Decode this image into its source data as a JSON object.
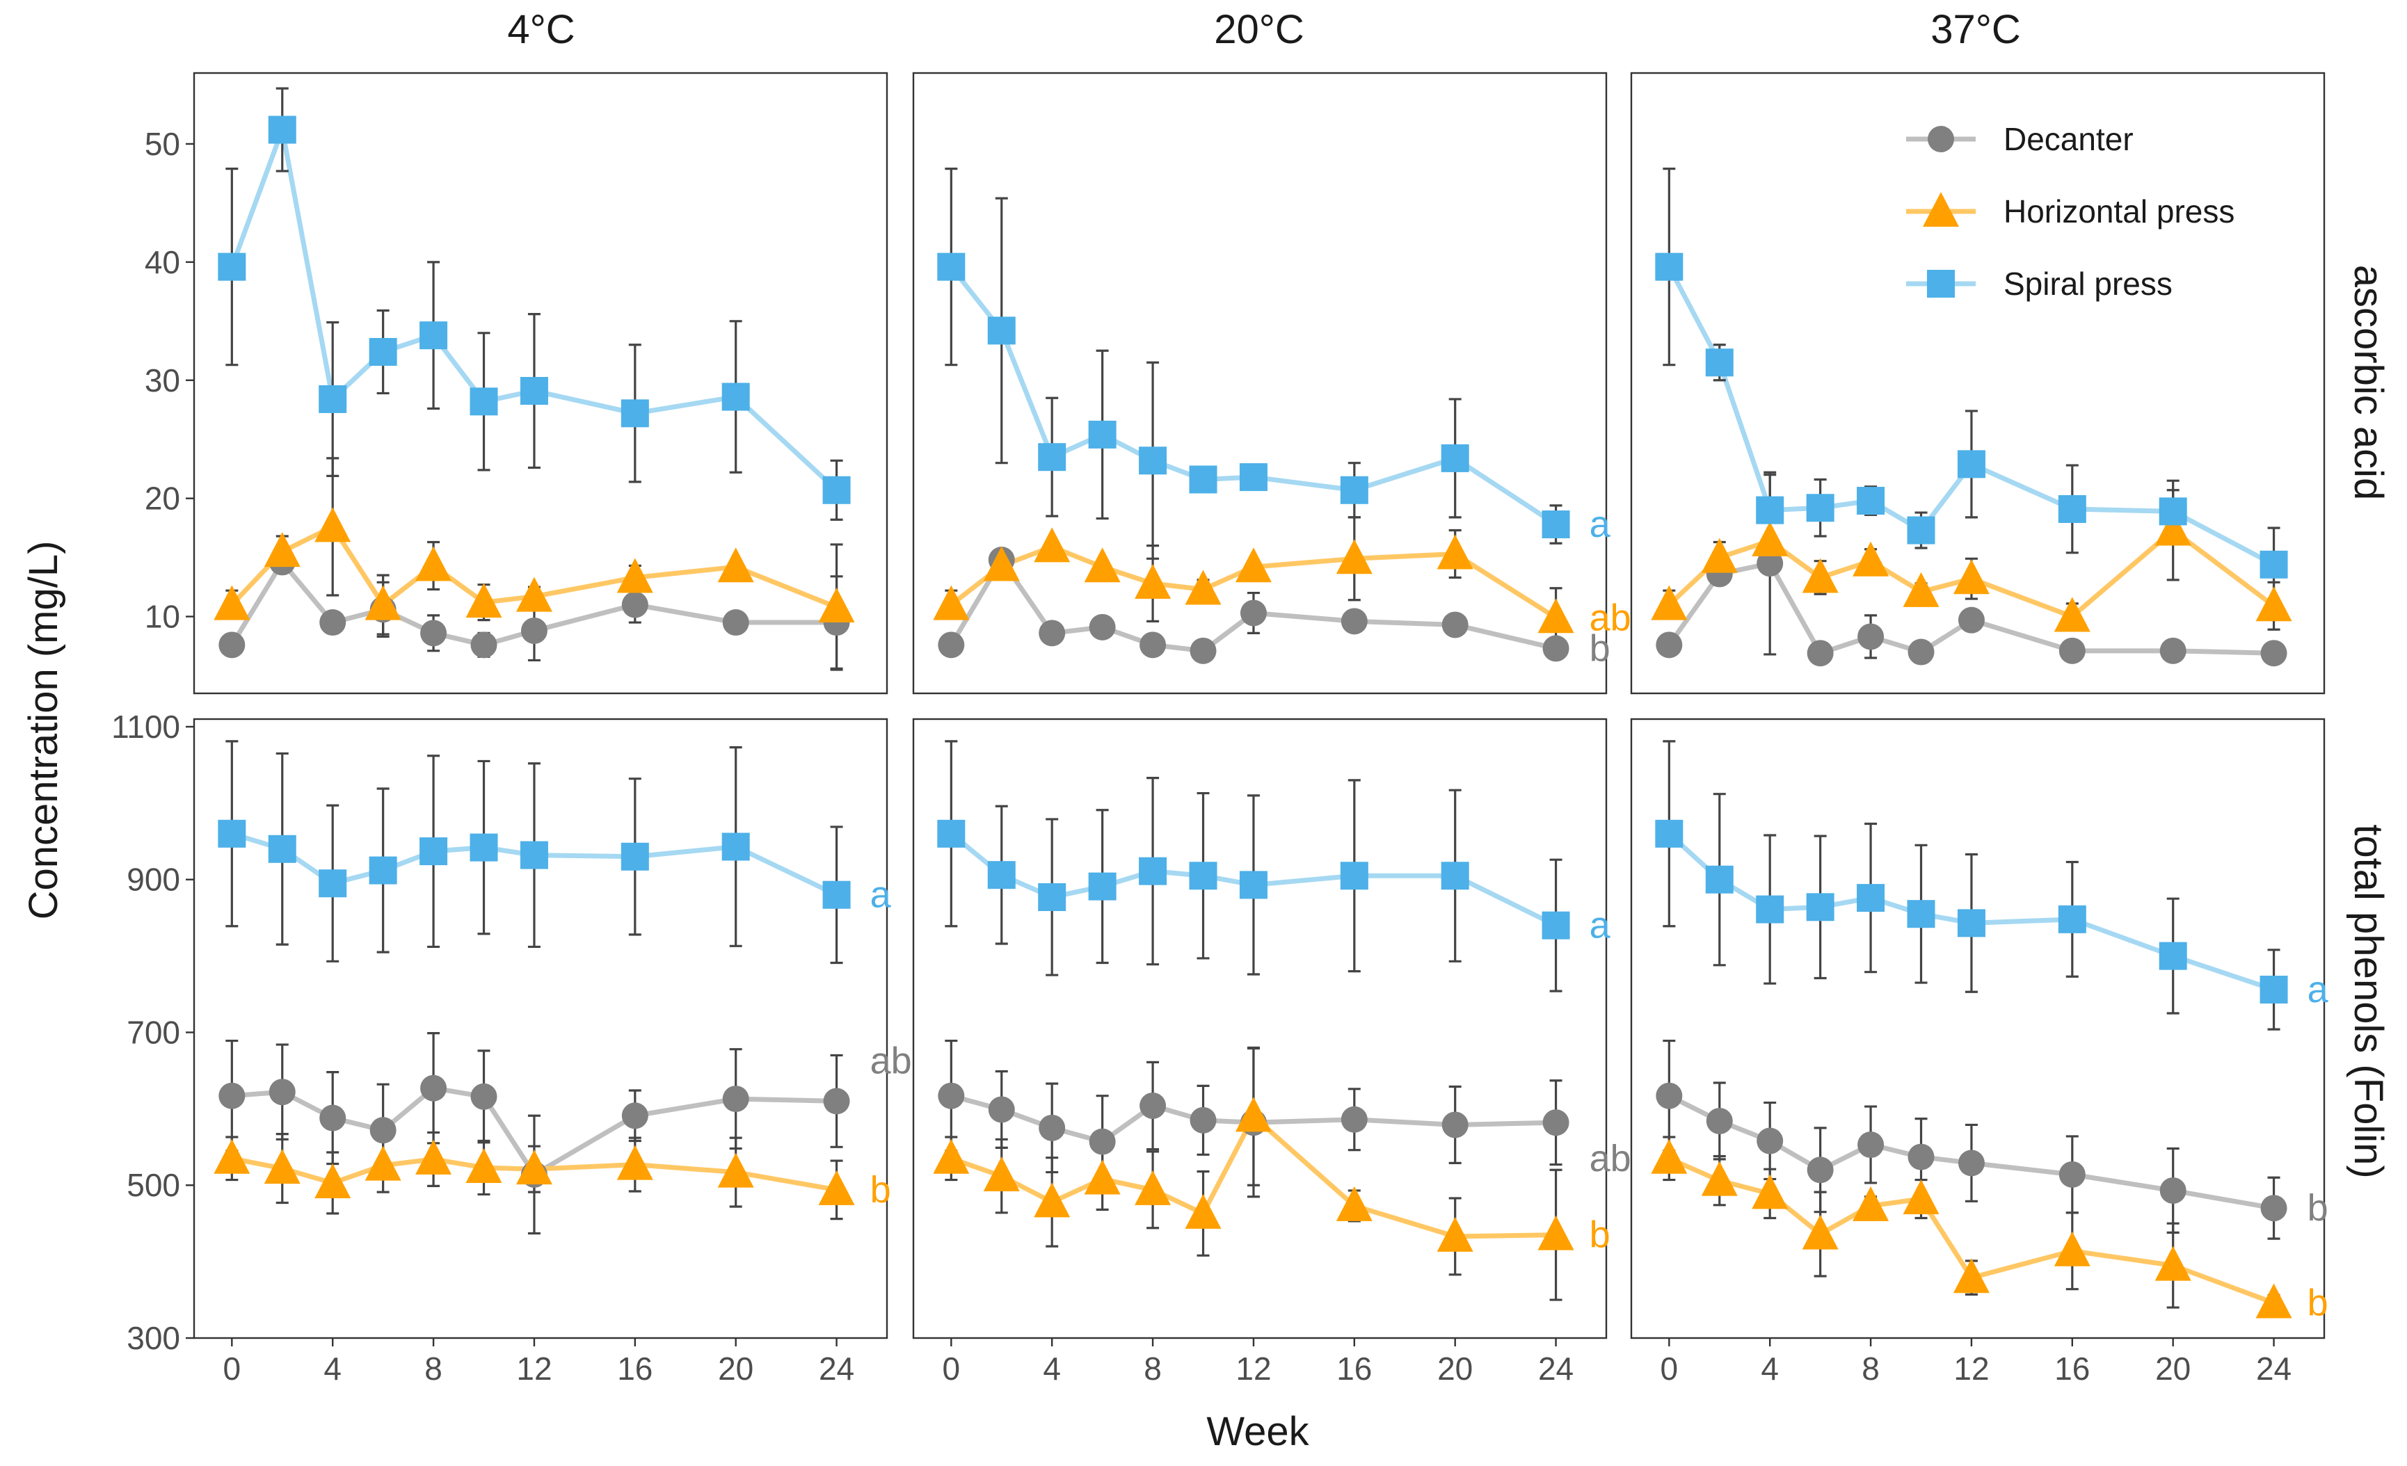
{
  "colors": {
    "Decanter": "#808080",
    "Horizontal press": "#FFA000",
    "Spiral press": "#4DB0E8"
  },
  "labels": {
    "ylabel": "Concentration (mg/L)",
    "xlabel": "Week",
    "row_strips": [
      "ascorbic acid",
      "total phenols (Folin)"
    ],
    "col_strips": [
      "4°C",
      "20°C",
      "37°C"
    ]
  },
  "legend": [
    {
      "name": "Decanter",
      "marker": "circle"
    },
    {
      "name": "Horizontal press",
      "marker": "triangle"
    },
    {
      "name": "Spiral press",
      "marker": "square"
    }
  ],
  "chart_data": {
    "type": "line",
    "facets": "rows = analyte, columns = storage temperature",
    "x": [
      0,
      2,
      4,
      6,
      8,
      10,
      12,
      16,
      20,
      24
    ],
    "xticks": [
      0,
      4,
      8,
      12,
      16,
      20,
      24
    ],
    "xlim": [
      -1.5,
      26
    ],
    "rows": [
      {
        "name": "ascorbic acid",
        "ylim": [
          3.5,
          56
        ],
        "yticks": [
          10,
          20,
          30,
          40,
          50
        ],
        "panels": [
          {
            "temperature": "4°C",
            "series": [
              {
                "name": "Decanter",
                "values": [
                  7.6,
                  14.6,
                  9.5,
                  10.6,
                  8.6,
                  7.6,
                  8.8,
                  11,
                  9.5,
                  9.5
                ],
                "errors": [
                  0.9,
                  0.4,
                  0.3,
                  2.3,
                  1.5,
                  1,
                  2.5,
                  1.5,
                  0.6,
                  3.9
                ],
                "letter": ""
              },
              {
                "name": "Horizontal press",
                "values": [
                  11,
                  15.5,
                  17.6,
                  11,
                  14.3,
                  11.2,
                  11.7,
                  13.3,
                  14.2,
                  10.8
                ],
                "errors": [
                  1.2,
                  1.3,
                  5.8,
                  2.5,
                  2,
                  1.5,
                  0.8,
                  1,
                  0.5,
                  5.3
                ],
                "letter": ""
              },
              {
                "name": "Spiral press",
                "values": [
                  39.6,
                  51.2,
                  28.4,
                  32.4,
                  33.8,
                  28.2,
                  29.1,
                  27.2,
                  28.6,
                  20.7
                ],
                "errors": [
                  8.3,
                  3.5,
                  6.5,
                  3.5,
                  6.2,
                  5.8,
                  6.5,
                  5.8,
                  6.4,
                  2.5
                ],
                "letter": ""
              }
            ]
          },
          {
            "temperature": "20°C",
            "series": [
              {
                "name": "Decanter",
                "values": [
                  7.6,
                  14.8,
                  8.6,
                  9.1,
                  7.6,
                  7.1,
                  10.3,
                  9.6,
                  9.3,
                  7.3
                ],
                "errors": [
                  0.8,
                  0.3,
                  0.8,
                  0.4,
                  0.7,
                  0.6,
                  1.7,
                  0.7,
                  0.7,
                  0.4
                ],
                "letter": "b"
              },
              {
                "name": "Horizontal press",
                "values": [
                  11,
                  14.3,
                  15.9,
                  14.2,
                  12.8,
                  12.3,
                  14.2,
                  14.9,
                  15.3,
                  9.9
                ],
                "errors": [
                  1.2,
                  0.4,
                  0.3,
                  0.4,
                  3.2,
                  0.8,
                  0.5,
                  3.5,
                  2,
                  2.5
                ],
                "letter": "ab"
              },
              {
                "name": "Spiral press",
                "values": [
                  39.6,
                  34.2,
                  23.5,
                  25.4,
                  23.2,
                  21.6,
                  21.8,
                  20.7,
                  23.4,
                  17.8
                ],
                "errors": [
                  8.3,
                  11.2,
                  5,
                  7.1,
                  8.3,
                  0.2,
                  0.8,
                  2.3,
                  5,
                  1.6
                ],
                "letter": "a"
              }
            ]
          },
          {
            "temperature": "37°C",
            "series": [
              {
                "name": "Decanter",
                "values": [
                  7.6,
                  13.6,
                  14.5,
                  6.9,
                  8.3,
                  7,
                  9.7,
                  7.1,
                  7.1,
                  6.9
                ],
                "errors": [
                  0.8,
                  0.9,
                  7.7,
                  0.5,
                  1.8,
                  0.7,
                  0.6,
                  0.5,
                  0.3,
                  0.4
                ],
                "letter": ""
              },
              {
                "name": "Horizontal press",
                "values": [
                  11,
                  15,
                  16.4,
                  13.3,
                  14.7,
                  12.1,
                  13.2,
                  10,
                  17.3,
                  10.9
                ],
                "errors": [
                  1.2,
                  1.3,
                  1.7,
                  1.4,
                  1,
                  0.7,
                  1.7,
                  1.1,
                  4.2,
                  2
                ],
                "letter": ""
              },
              {
                "name": "Spiral press",
                "values": [
                  39.6,
                  31.5,
                  19,
                  19.2,
                  19.8,
                  17.3,
                  22.9,
                  19.1,
                  18.9,
                  14.4
                ],
                "errors": [
                  8.3,
                  1.5,
                  3,
                  2.4,
                  1.2,
                  1.5,
                  4.5,
                  3.7,
                  1.8,
                  3.1
                ],
                "letter": ""
              }
            ]
          }
        ]
      },
      {
        "name": "total phenols (Folin)",
        "ylim": [
          300,
          1110
        ],
        "yticks": [
          300,
          500,
          700,
          900,
          1100
        ],
        "panels": [
          {
            "temperature": "4°C",
            "series": [
              {
                "name": "Decanter",
                "values": [
                  617,
                  622,
                  588,
                  572,
                  627,
                  616,
                  514,
                  591,
                  613,
                  610
                ],
                "errors": [
                  72,
                  62,
                  60,
                  60,
                  72,
                  60,
                  77,
                  33,
                  65,
                  60
                ],
                "letter": "ab"
              },
              {
                "name": "Horizontal press",
                "values": [
                  535,
                  522,
                  503,
                  526,
                  534,
                  523,
                  521,
                  527,
                  517,
                  494
                ],
                "errors": [
                  28,
                  45,
                  40,
                  35,
                  35,
                  35,
                  30,
                  35,
                  45,
                  38
                ],
                "letter": "b"
              },
              {
                "name": "Spiral press",
                "values": [
                  960,
                  940,
                  895,
                  912,
                  937,
                  942,
                  932,
                  930,
                  943,
                  880
                ],
                "errors": [
                  121,
                  125,
                  102,
                  107,
                  125,
                  113,
                  120,
                  102,
                  130,
                  89
                ],
                "letter": "a"
              }
            ]
          },
          {
            "temperature": "20°C",
            "series": [
              {
                "name": "Decanter",
                "values": [
                  617,
                  599,
                  575,
                  557,
                  604,
                  585,
                  582,
                  586,
                  579,
                  582
                ],
                "errors": [
                  72,
                  50,
                  58,
                  60,
                  57,
                  45,
                  97,
                  40,
                  50,
                  55
                ],
                "letter": "ab"
              },
              {
                "name": "Horizontal press",
                "values": [
                  535,
                  512,
                  478,
                  508,
                  494,
                  463,
                  590,
                  473,
                  433,
                  435
                ],
                "errors": [
                  28,
                  48,
                  58,
                  40,
                  50,
                  55,
                  90,
                  20,
                  50,
                  85
                ],
                "letter": "b"
              },
              {
                "name": "Spiral press",
                "values": [
                  960,
                  906,
                  877,
                  891,
                  911,
                  905,
                  893,
                  905,
                  905,
                  840
                ],
                "errors": [
                  121,
                  90,
                  102,
                  100,
                  122,
                  108,
                  117,
                  125,
                  112,
                  86
                ],
                "letter": "a"
              }
            ]
          },
          {
            "temperature": "37°C",
            "series": [
              {
                "name": "Decanter",
                "values": [
                  617,
                  584,
                  558,
                  520,
                  553,
                  537,
                  529,
                  514,
                  493,
                  470
                ],
                "errors": [
                  72,
                  50,
                  50,
                  55,
                  50,
                  50,
                  50,
                  50,
                  55,
                  40
                ],
                "letter": "b"
              },
              {
                "name": "Horizontal press",
                "values": [
                  535,
                  506,
                  489,
                  436,
                  473,
                  482,
                  379,
                  414,
                  395,
                  346
                ],
                "errors": [
                  28,
                  32,
                  32,
                  55,
                  12,
                  25,
                  22,
                  50,
                  55,
                  10
                ],
                "letter": "b"
              },
              {
                "name": "Spiral press",
                "values": [
                  960,
                  900,
                  861,
                  864,
                  876,
                  855,
                  843,
                  848,
                  800,
                  756
                ],
                "errors": [
                  121,
                  112,
                  97,
                  93,
                  97,
                  90,
                  90,
                  75,
                  75,
                  52
                ],
                "letter": "a"
              }
            ]
          }
        ]
      }
    ]
  }
}
